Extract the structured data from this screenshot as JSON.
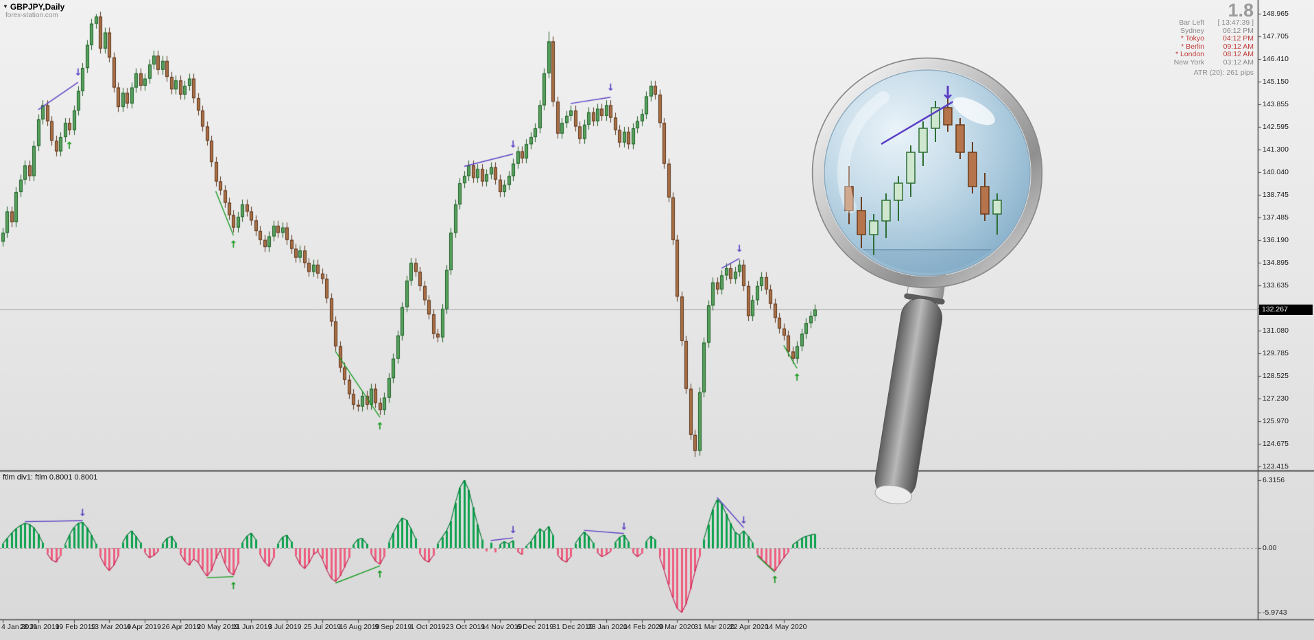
{
  "title": {
    "symbol_period": "GBPJPY,Daily",
    "watermark": "forex-station.com"
  },
  "info_panel": {
    "big_value": "1.8",
    "sessions": [
      {
        "label": "Bar Left",
        "value": "[ 13:47:39 ]",
        "color": "gray"
      },
      {
        "label": "Sydney",
        "value": "06:12 PM",
        "color": "gray"
      },
      {
        "label": "* Tokyo",
        "value": "04:12 PM",
        "color": "red"
      },
      {
        "label": "* Berlin",
        "value": "09:12 AM",
        "color": "red"
      },
      {
        "label": "* London",
        "value": "08:12 AM",
        "color": "red"
      },
      {
        "label": "New York",
        "value": "03:12 AM",
        "color": "gray"
      }
    ],
    "atr_label": "ATR (20): 261 pips"
  },
  "price_axis": {
    "labels": [
      "148.965",
      "147.705",
      "146.410",
      "145.150",
      "143.855",
      "142.595",
      "141.300",
      "140.040",
      "138.745",
      "137.485",
      "136.190",
      "134.895",
      "133.635",
      "132.340",
      "131.080",
      "129.785",
      "128.525",
      "127.230",
      "125.970",
      "124.675",
      "123.415"
    ],
    "current_price": "132.267"
  },
  "indicator_label": "ftlm div1: ftlm 0.8001 0.8001",
  "indicator_axis": {
    "max_label": "6.3156",
    "zero_label": "0.00",
    "min_label": "-5.9743"
  },
  "time_axis": {
    "labels": [
      "4 Jan 2019",
      "28 Jan 2019",
      "19 Feb 2019",
      "13 Mar 2019",
      "4 Apr 2019",
      "26 Apr 2019",
      "20 May 2019",
      "11 Jun 2019",
      "3 Jul 2019",
      "25 Jul 2019",
      "16 Aug 2019",
      "9 Sep 2019",
      "1 Oct 2019",
      "23 Oct 2019",
      "14 Nov 2019",
      "6 Dec 2019",
      "31 Dec 2019",
      "23 Jan 2020",
      "14 Feb 2020",
      "9 Mar 2020",
      "31 Mar 2020",
      "22 Apr 2020",
      "14 May 2020"
    ]
  },
  "chart_data": {
    "type": "candlestick",
    "symbol": "GBPJPY",
    "period": "Daily",
    "price_range": [
      123.415,
      148.965
    ],
    "bid": 132.267,
    "first_open": 136.1,
    "default_wick": 0.28,
    "closes": [
      136.6,
      137.8,
      137.2,
      138.9,
      139.6,
      140.4,
      139.8,
      141.5,
      143.0,
      143.8,
      142.9,
      141.8,
      141.2,
      142.0,
      142.8,
      142.4,
      143.5,
      144.6,
      145.9,
      147.2,
      148.4,
      148.8,
      147.0,
      147.9,
      146.5,
      144.8,
      143.7,
      144.5,
      143.9,
      144.8,
      145.6,
      144.9,
      145.3,
      146.1,
      146.6,
      145.8,
      146.3,
      145.4,
      144.7,
      145.2,
      144.4,
      144.9,
      145.3,
      144.2,
      143.5,
      142.6,
      141.8,
      140.6,
      139.5,
      139.0,
      138.3,
      137.6,
      136.9,
      137.5,
      138.2,
      137.8,
      137.3,
      136.7,
      136.2,
      135.8,
      136.4,
      137.0,
      136.6,
      136.9,
      136.2,
      135.7,
      135.2,
      135.6,
      134.9,
      134.4,
      134.8,
      134.3,
      134.0,
      132.9,
      131.6,
      130.2,
      129.0,
      128.3,
      127.5,
      126.9,
      126.8,
      127.4,
      126.9,
      127.8,
      127.0,
      126.6,
      127.3,
      128.4,
      129.5,
      130.8,
      132.4,
      133.9,
      134.9,
      134.4,
      133.6,
      132.8,
      132.0,
      130.9,
      130.7,
      132.3,
      134.5,
      136.6,
      138.2,
      139.4,
      139.8,
      140.4,
      139.7,
      140.2,
      139.5,
      139.9,
      140.3,
      139.6,
      138.9,
      139.3,
      139.8,
      140.5,
      141.2,
      140.8,
      141.6,
      142.0,
      142.5,
      143.8,
      145.6,
      147.4,
      144.0,
      142.2,
      142.8,
      143.2,
      143.5,
      142.6,
      141.9,
      142.7,
      143.4,
      142.9,
      143.6,
      143.2,
      143.8,
      143.1,
      142.4,
      141.7,
      142.3,
      141.6,
      142.5,
      142.9,
      143.3,
      144.3,
      144.9,
      144.4,
      142.8,
      140.5,
      138.6,
      136.2,
      133.0,
      130.5,
      127.8,
      125.2,
      124.3,
      127.6,
      130.4,
      132.5,
      133.8,
      133.4,
      134.2,
      134.6,
      134.0,
      134.4,
      134.8,
      133.6,
      131.9,
      132.8,
      133.6,
      134.1,
      133.4,
      132.6,
      131.8,
      131.2,
      130.8,
      129.9,
      129.5,
      130.2,
      130.9,
      131.5,
      131.9,
      132.27
    ],
    "wick_overrides": {
      "21": {
        "h": 148.95
      },
      "123": {
        "h": 147.95
      },
      "156": {
        "l": 123.95
      }
    },
    "indicator": {
      "name": "ftlm div1",
      "range": [
        -5.9743,
        6.3156
      ],
      "values": [
        0.4,
        0.9,
        1.4,
        1.8,
        2.1,
        2.3,
        2.2,
        1.9,
        1.3,
        0.5,
        -0.5,
        -1.1,
        -1.3,
        -0.7,
        0.3,
        1.2,
        1.9,
        2.3,
        2.4,
        1.9,
        1.2,
        0.4,
        -0.8,
        -1.6,
        -2.1,
        -1.6,
        -0.8,
        0.5,
        1.2,
        1.6,
        1.1,
        0.5,
        -0.4,
        -0.9,
        -0.7,
        -0.3,
        0.4,
        0.9,
        1.1,
        0.5,
        -0.5,
        -1.2,
        -1.6,
        -1.0,
        -1.3,
        -2.0,
        -2.6,
        -2.1,
        -1.0,
        -0.2,
        -1.4,
        -2.2,
        -2.5,
        -1.5,
        0.5,
        1.1,
        1.4,
        0.8,
        -0.6,
        -1.3,
        -1.7,
        -0.9,
        0.4,
        1.0,
        1.2,
        0.6,
        -0.7,
        -1.5,
        -1.9,
        -1.4,
        -0.6,
        -0.3,
        -1.0,
        -2.0,
        -2.8,
        -3.1,
        -2.6,
        -1.8,
        -0.9,
        0.3,
        0.8,
        0.9,
        0.4,
        -0.5,
        -1.2,
        -1.5,
        -0.8,
        0.5,
        1.4,
        2.2,
        2.8,
        2.6,
        1.8,
        0.9,
        -0.5,
        -1.1,
        -1.3,
        -0.7,
        0.4,
        1.0,
        1.6,
        2.5,
        4.2,
        5.6,
        6.3,
        5.4,
        3.8,
        2.2,
        0.8,
        -0.3,
        0.5,
        -0.4,
        0.3,
        0.6,
        0.4,
        0.7,
        -0.3,
        -0.6,
        0.2,
        0.6,
        1.2,
        1.8,
        1.5,
        2.0,
        1.2,
        -0.6,
        -1.1,
        -1.3,
        -0.8,
        0.4,
        1.0,
        1.5,
        1.1,
        0.5,
        -0.4,
        -0.8,
        -0.6,
        -0.3,
        0.5,
        1.0,
        1.2,
        0.6,
        -0.4,
        -0.8,
        -0.5,
        0.6,
        1.1,
        0.8,
        -0.8,
        -2.0,
        -3.4,
        -4.6,
        -5.6,
        -5.97,
        -5.2,
        -3.8,
        -2.2,
        -0.8,
        0.8,
        2.2,
        3.6,
        4.5,
        4.1,
        3.2,
        2.3,
        1.5,
        1.2,
        1.6,
        1.1,
        0.5,
        -0.5,
        -1.0,
        -1.4,
        -1.8,
        -2.1,
        -1.5,
        -0.9,
        -0.4,
        0.3,
        0.6,
        0.9,
        1.1,
        1.2,
        1.3
      ]
    },
    "price_annotations": [
      {
        "type": "bear",
        "line": [
          [
            8,
            143.55
          ],
          [
            17,
            145.1
          ]
        ],
        "arrow": [
          17,
          145.55
        ]
      },
      {
        "type": "bull",
        "arrow": [
          15,
          141.7
        ]
      },
      {
        "type": "bull",
        "line": [
          [
            48,
            138.95
          ],
          [
            52,
            136.45
          ]
        ],
        "arrow": [
          52,
          136.1
        ]
      },
      {
        "type": "bull",
        "line": [
          [
            75,
            129.9
          ],
          [
            85,
            126.2
          ]
        ],
        "arrow": [
          85,
          125.85
        ]
      },
      {
        "type": "bear",
        "line": [
          [
            104,
            140.35
          ],
          [
            115,
            141.05
          ]
        ],
        "arrow": [
          115,
          141.5
        ]
      },
      {
        "type": "bear",
        "line": [
          [
            128,
            143.9
          ],
          [
            137,
            144.25
          ]
        ],
        "arrow": [
          137,
          144.7
        ]
      },
      {
        "type": "bear",
        "line": [
          [
            162,
            134.6
          ],
          [
            166,
            135.15
          ]
        ],
        "arrow": [
          166,
          135.6
        ]
      },
      {
        "type": "bull",
        "line": [
          [
            176,
            130.25
          ],
          [
            179,
            128.95
          ]
        ],
        "arrow": [
          179,
          128.6
        ]
      }
    ],
    "indicator_annotations": [
      {
        "type": "bear",
        "line": [
          [
            5,
            2.45
          ],
          [
            18,
            2.55
          ]
        ],
        "arrow": [
          18,
          3.15
        ]
      },
      {
        "type": "bull",
        "line": [
          [
            46,
            -2.75
          ],
          [
            52,
            -2.65
          ]
        ],
        "arrow": [
          52,
          -3.25
        ]
      },
      {
        "type": "bull",
        "line": [
          [
            75,
            -3.25
          ],
          [
            85,
            -1.65
          ]
        ],
        "arrow": [
          85,
          -2.15
        ]
      },
      {
        "type": "bear",
        "line": [
          [
            110,
            0.7
          ],
          [
            115,
            0.95
          ]
        ],
        "arrow": [
          115,
          1.5
        ]
      },
      {
        "type": "bear",
        "line": [
          [
            131,
            1.65
          ],
          [
            140,
            1.35
          ]
        ],
        "arrow": [
          140,
          1.85
        ]
      },
      {
        "type": "bear",
        "line": [
          [
            161,
            4.7
          ],
          [
            167,
            1.9
          ]
        ],
        "arrow": [
          167,
          2.4
        ]
      },
      {
        "type": "bull",
        "line": [
          [
            170,
            -0.7
          ],
          [
            174,
            -2.25
          ]
        ],
        "arrow": [
          174,
          -2.7
        ]
      }
    ]
  },
  "magnifier": {
    "candles": [
      [
        -114,
        20,
        -10,
        75,
        55
      ],
      [
        -96,
        55,
        35,
        110,
        90
      ],
      [
        -78,
        90,
        60,
        120,
        70
      ],
      [
        -60,
        70,
        30,
        95,
        40
      ],
      [
        -42,
        40,
        5,
        70,
        15
      ],
      [
        -24,
        15,
        -40,
        35,
        -30
      ],
      [
        -6,
        -30,
        -75,
        -10,
        -65
      ],
      [
        12,
        -65,
        -105,
        -45,
        -95
      ],
      [
        30,
        -95,
        -110,
        -60,
        -70
      ],
      [
        48,
        -70,
        -80,
        -20,
        -30
      ],
      [
        66,
        -30,
        -45,
        30,
        20
      ],
      [
        84,
        20,
        0,
        70,
        60
      ],
      [
        102,
        60,
        30,
        90,
        40
      ]
    ],
    "trendline": [
      [
        -67,
        -42
      ],
      [
        38,
        -104
      ]
    ],
    "arrow": [
      30,
      -108
    ]
  },
  "colors": {
    "up_fill": "#57a05e",
    "up_stroke": "#1b5e22",
    "down_fill": "#aa6f45",
    "down_stroke": "#59331a",
    "hist_up": "#0ca24d",
    "hist_up_line": "#047a36",
    "hist_down": "#ef5d7f",
    "hist_down_line": "#c22653",
    "div_bear": "#5b3fc4",
    "div_bull": "#169a1f",
    "bid_line": "#adadad",
    "separator": "#4a4a4a",
    "badge_bg": "#000000"
  }
}
